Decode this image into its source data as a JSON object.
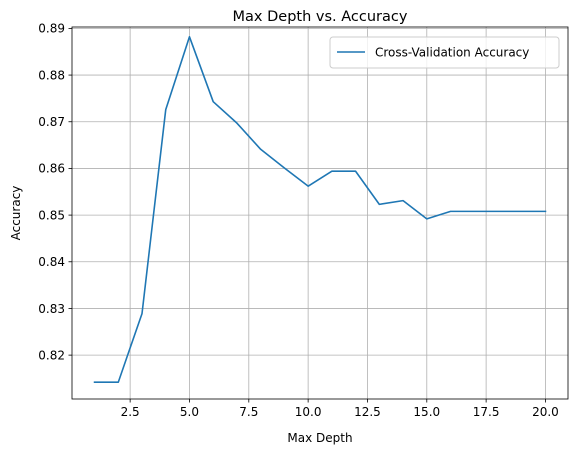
{
  "chart_data": {
    "type": "line",
    "title": "Max Depth vs. Accuracy",
    "xlabel": "Max Depth",
    "ylabel": "Accuracy",
    "xlim": [
      0.05,
      20.95
    ],
    "ylim": [
      0.8106,
      0.8903
    ],
    "xticks": [
      2.5,
      5.0,
      7.5,
      10.0,
      12.5,
      15.0,
      17.5,
      20.0
    ],
    "xtick_labels": [
      "2.5",
      "5.0",
      "7.5",
      "10.0",
      "12.5",
      "15.0",
      "17.5",
      "20.0"
    ],
    "yticks": [
      0.82,
      0.83,
      0.84,
      0.85,
      0.86,
      0.87,
      0.88,
      0.89
    ],
    "ytick_labels": [
      "0.82",
      "0.83",
      "0.84",
      "0.85",
      "0.86",
      "0.87",
      "0.88",
      "0.89"
    ],
    "grid": true,
    "legend_position": "top-right",
    "series": [
      {
        "name": "Cross-Validation Accuracy",
        "color": "#1f77b4",
        "x": [
          1,
          2,
          3,
          4,
          5,
          6,
          7,
          8,
          9,
          10,
          11,
          12,
          13,
          14,
          15,
          16,
          17,
          18,
          19,
          20
        ],
        "y": [
          0.8142,
          0.8142,
          0.8289,
          0.8726,
          0.8882,
          0.8743,
          0.8697,
          0.8641,
          0.8601,
          0.8562,
          0.8594,
          0.8594,
          0.8523,
          0.8531,
          0.8492,
          0.8508,
          0.8508,
          0.8508,
          0.8508,
          0.8508
        ]
      }
    ]
  }
}
